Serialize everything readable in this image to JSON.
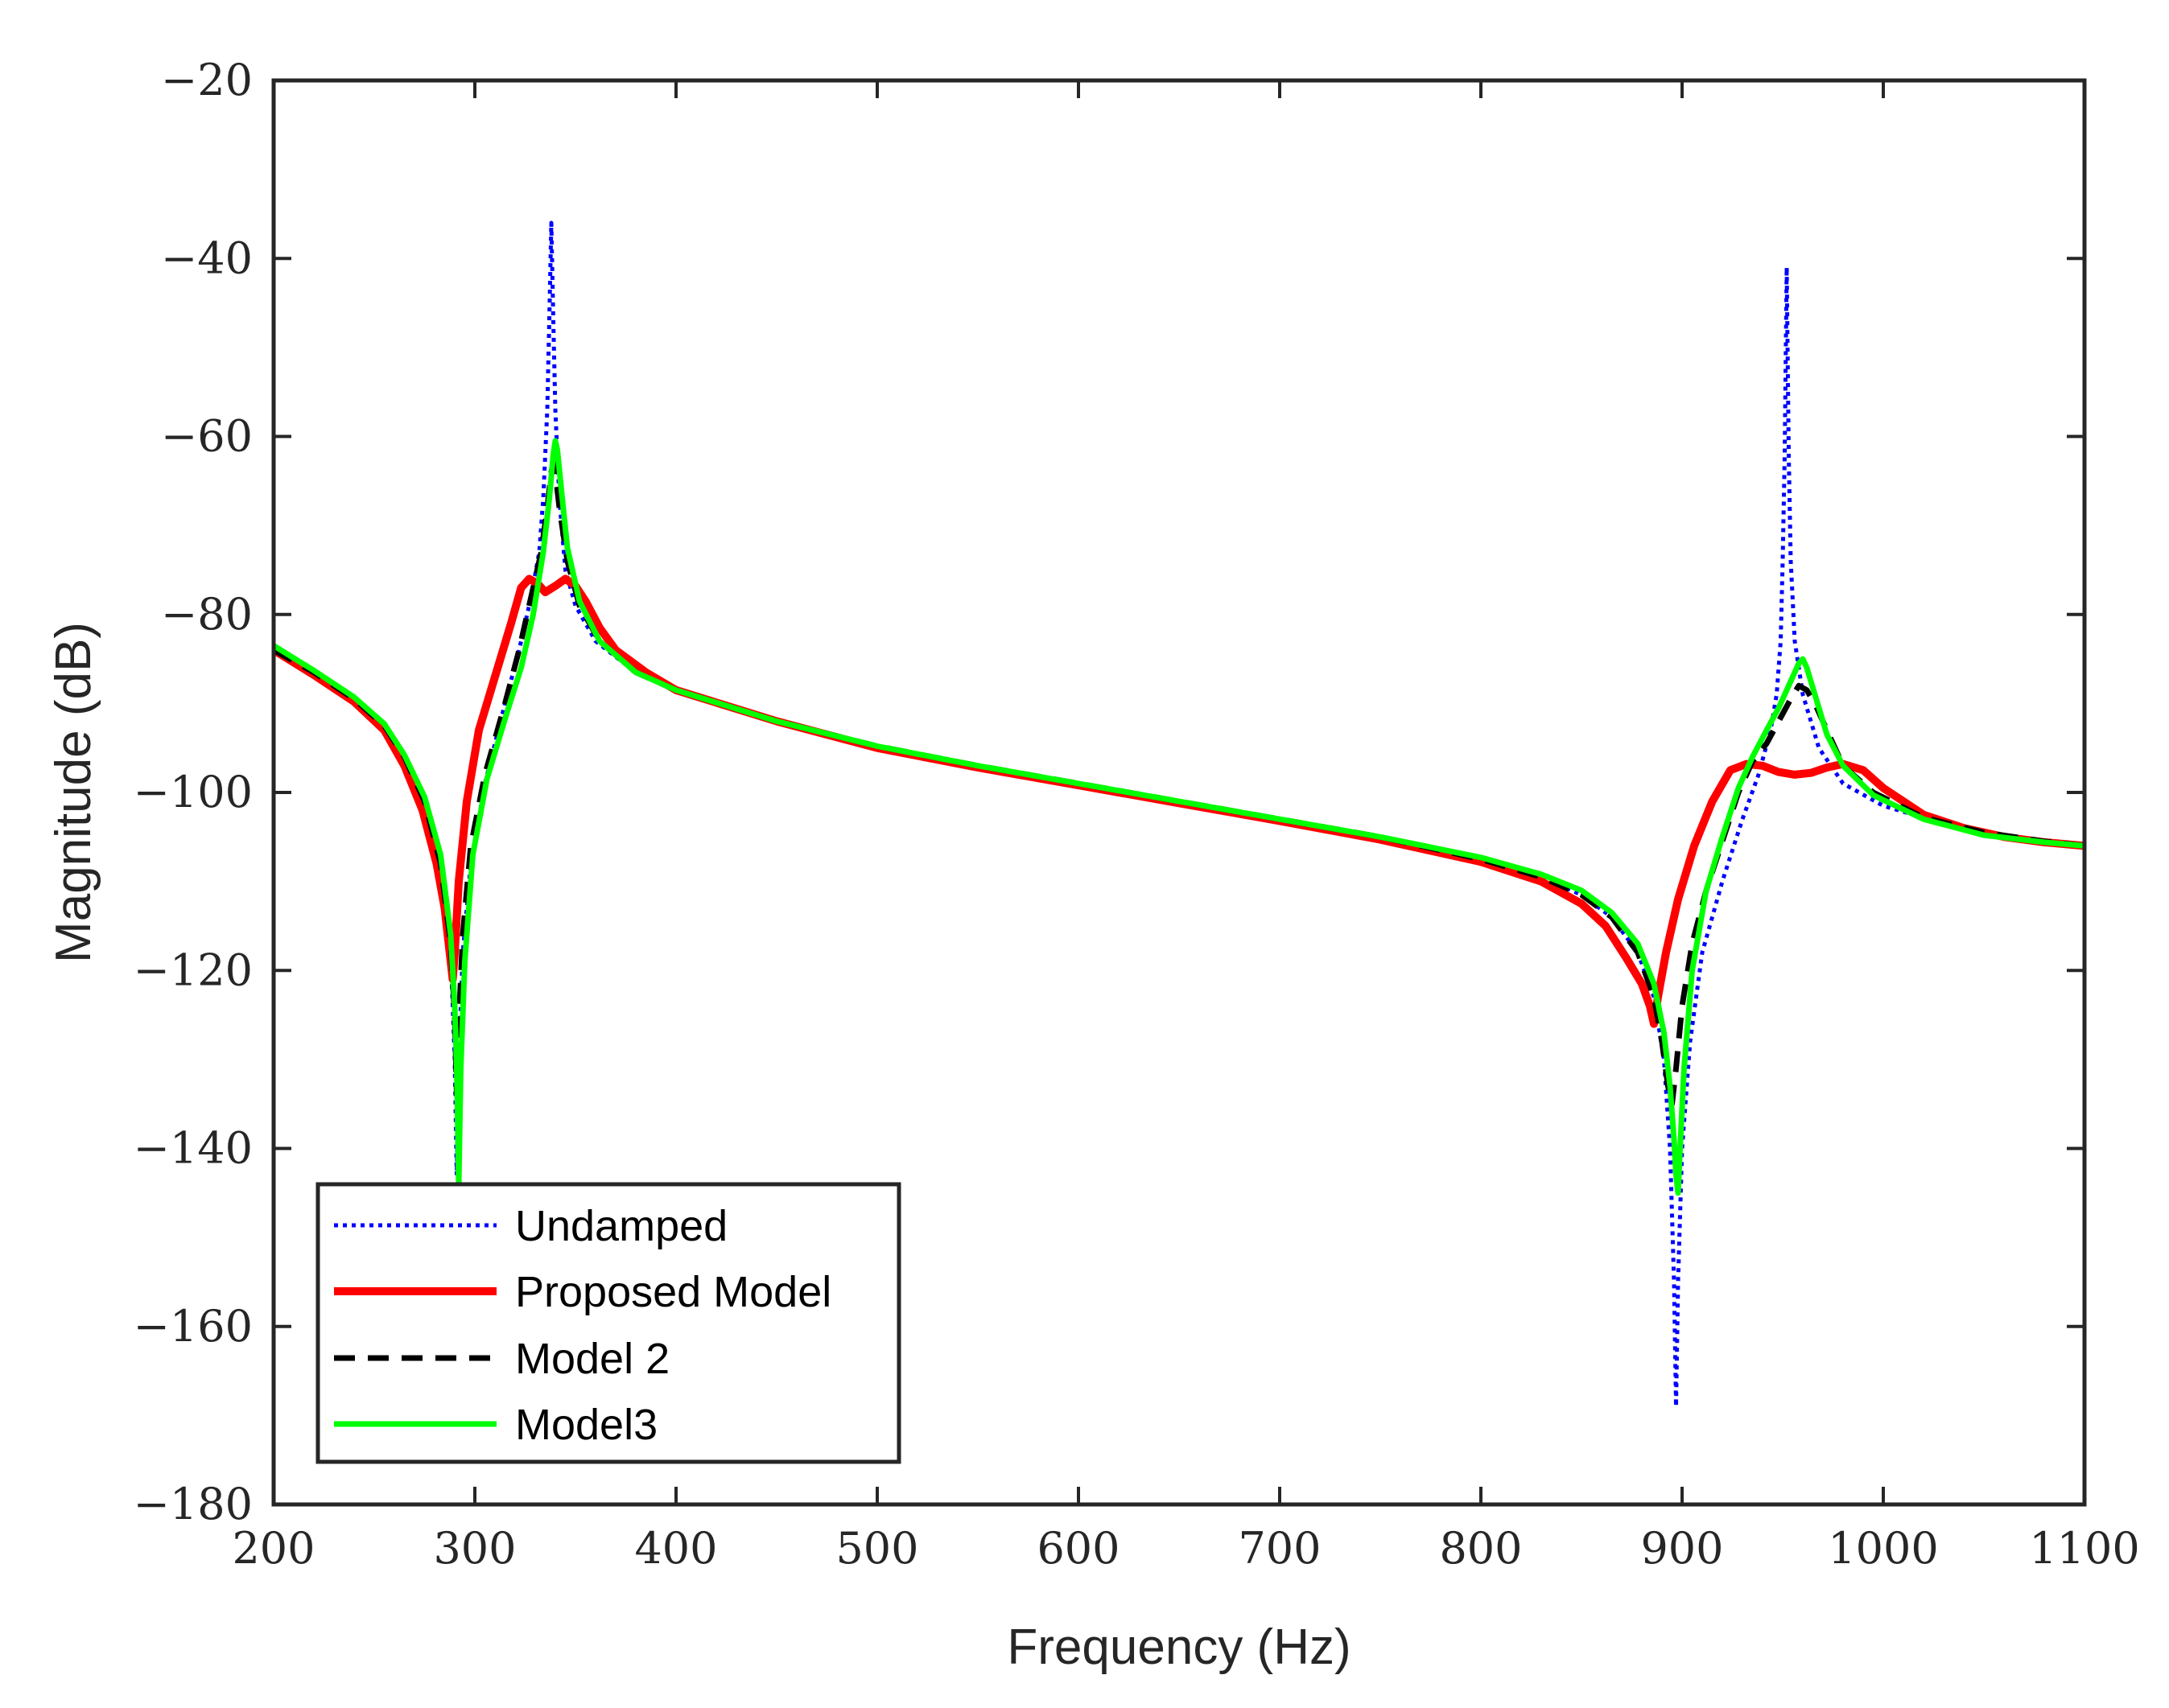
{
  "chart_data": {
    "type": "line",
    "title": "",
    "xlabel": "Frequency (Hz)",
    "ylabel": "Magnitude (dB)",
    "xlim": [
      200,
      1100
    ],
    "ylim": [
      -180,
      -20
    ],
    "xticks": [
      200,
      300,
      400,
      500,
      600,
      700,
      800,
      900,
      1000,
      1100
    ],
    "xtick_labels": [
      "200",
      "300",
      "400",
      "500",
      "600",
      "700",
      "800",
      "900",
      "1000",
      "1100"
    ],
    "yticks": [
      -180,
      -160,
      -140,
      -120,
      -100,
      -80,
      -60,
      -40,
      -20
    ],
    "ytick_labels": [
      "−180",
      "−160",
      "−140",
      "−120",
      "−100",
      "−80",
      "−60",
      "−40",
      "−20"
    ],
    "grid": false,
    "legend_position": "bottom-left",
    "series": [
      {
        "name": "Undamped",
        "color": "#0000ff",
        "style": "dotted",
        "points": [
          [
            200,
            -84
          ],
          [
            220,
            -86.5
          ],
          [
            240,
            -89.5
          ],
          [
            255,
            -92.5
          ],
          [
            265,
            -96
          ],
          [
            275,
            -101
          ],
          [
            283,
            -108
          ],
          [
            288,
            -118
          ],
          [
            290,
            -130
          ],
          [
            291,
            -143
          ],
          [
            292,
            -130
          ],
          [
            294,
            -118
          ],
          [
            298,
            -108
          ],
          [
            305,
            -99
          ],
          [
            315,
            -90
          ],
          [
            322,
            -84
          ],
          [
            328,
            -78
          ],
          [
            332,
            -73
          ],
          [
            334,
            -67
          ],
          [
            336,
            -57
          ],
          [
            337,
            -47
          ],
          [
            338,
            -36
          ],
          [
            339,
            -47
          ],
          [
            340,
            -57
          ],
          [
            342,
            -67
          ],
          [
            345,
            -75
          ],
          [
            350,
            -79
          ],
          [
            360,
            -83
          ],
          [
            380,
            -86.5
          ],
          [
            400,
            -88.5
          ],
          [
            450,
            -92
          ],
          [
            500,
            -94.8
          ],
          [
            550,
            -97
          ],
          [
            600,
            -99
          ],
          [
            650,
            -101
          ],
          [
            700,
            -103
          ],
          [
            750,
            -105
          ],
          [
            800,
            -107.5
          ],
          [
            830,
            -109.5
          ],
          [
            850,
            -111.5
          ],
          [
            865,
            -114
          ],
          [
            878,
            -118
          ],
          [
            886,
            -123
          ],
          [
            891,
            -130
          ],
          [
            894,
            -140
          ],
          [
            896,
            -155
          ],
          [
            897,
            -169
          ],
          [
            898,
            -155
          ],
          [
            900,
            -140
          ],
          [
            904,
            -128
          ],
          [
            910,
            -118
          ],
          [
            920,
            -110
          ],
          [
            930,
            -103
          ],
          [
            938,
            -98
          ],
          [
            944,
            -93
          ],
          [
            947,
            -89
          ],
          [
            949,
            -83
          ],
          [
            950,
            -74
          ],
          [
            951,
            -62
          ],
          [
            952,
            -41
          ],
          [
            953,
            -62
          ],
          [
            954,
            -74
          ],
          [
            956,
            -83
          ],
          [
            960,
            -89
          ],
          [
            968,
            -95
          ],
          [
            980,
            -99
          ],
          [
            1000,
            -101.5
          ],
          [
            1030,
            -103.5
          ],
          [
            1060,
            -105
          ],
          [
            1100,
            -106
          ]
        ]
      },
      {
        "name": "Proposed Model",
        "color": "#ff0000",
        "style": "solid",
        "points": [
          [
            200,
            -84
          ],
          [
            220,
            -86.8
          ],
          [
            240,
            -89.8
          ],
          [
            255,
            -93
          ],
          [
            265,
            -97
          ],
          [
            274,
            -102
          ],
          [
            281,
            -108
          ],
          [
            285,
            -113
          ],
          [
            288,
            -119
          ],
          [
            289,
            -121
          ],
          [
            290,
            -118
          ],
          [
            292,
            -110
          ],
          [
            296,
            -101
          ],
          [
            302,
            -93
          ],
          [
            310,
            -87
          ],
          [
            318,
            -81
          ],
          [
            323,
            -77
          ],
          [
            327,
            -76
          ],
          [
            331,
            -76.5
          ],
          [
            335,
            -77.5
          ],
          [
            340,
            -76.8
          ],
          [
            345,
            -76
          ],
          [
            350,
            -76.8
          ],
          [
            355,
            -78.5
          ],
          [
            362,
            -81.5
          ],
          [
            370,
            -84
          ],
          [
            385,
            -86.5
          ],
          [
            400,
            -88.5
          ],
          [
            450,
            -92
          ],
          [
            500,
            -95
          ],
          [
            550,
            -97.2
          ],
          [
            600,
            -99.2
          ],
          [
            650,
            -101.2
          ],
          [
            700,
            -103.2
          ],
          [
            750,
            -105.3
          ],
          [
            800,
            -107.8
          ],
          [
            830,
            -110
          ],
          [
            850,
            -112.5
          ],
          [
            862,
            -115
          ],
          [
            872,
            -118.5
          ],
          [
            880,
            -121.5
          ],
          [
            884,
            -124
          ],
          [
            886,
            -126
          ],
          [
            888,
            -123
          ],
          [
            892,
            -118
          ],
          [
            898,
            -112
          ],
          [
            906,
            -106
          ],
          [
            915,
            -101
          ],
          [
            924,
            -97.5
          ],
          [
            932,
            -96.8
          ],
          [
            940,
            -97
          ],
          [
            948,
            -97.7
          ],
          [
            956,
            -98
          ],
          [
            964,
            -97.8
          ],
          [
            972,
            -97.2
          ],
          [
            980,
            -96.8
          ],
          [
            990,
            -97.5
          ],
          [
            1000,
            -99.5
          ],
          [
            1020,
            -102.5
          ],
          [
            1040,
            -104
          ],
          [
            1060,
            -105
          ],
          [
            1080,
            -105.6
          ],
          [
            1100,
            -106
          ]
        ]
      },
      {
        "name": "Model 2",
        "color": "#000000",
        "style": "dashed",
        "points": [
          [
            200,
            -84
          ],
          [
            220,
            -86.5
          ],
          [
            240,
            -89.5
          ],
          [
            255,
            -92.5
          ],
          [
            265,
            -96
          ],
          [
            275,
            -101
          ],
          [
            283,
            -108
          ],
          [
            288,
            -117
          ],
          [
            290,
            -125
          ],
          [
            291,
            -134
          ],
          [
            292,
            -126
          ],
          [
            294,
            -116
          ],
          [
            298,
            -106
          ],
          [
            305,
            -98
          ],
          [
            315,
            -90
          ],
          [
            322,
            -84
          ],
          [
            328,
            -78
          ],
          [
            333,
            -73
          ],
          [
            336,
            -68
          ],
          [
            338,
            -64
          ],
          [
            339,
            -63
          ],
          [
            340,
            -64
          ],
          [
            342,
            -68
          ],
          [
            346,
            -74
          ],
          [
            352,
            -79
          ],
          [
            362,
            -83
          ],
          [
            380,
            -86.5
          ],
          [
            400,
            -88.5
          ],
          [
            450,
            -92
          ],
          [
            500,
            -94.8
          ],
          [
            550,
            -97
          ],
          [
            600,
            -99
          ],
          [
            650,
            -101
          ],
          [
            700,
            -103
          ],
          [
            750,
            -105
          ],
          [
            800,
            -107.5
          ],
          [
            830,
            -109.5
          ],
          [
            850,
            -111.5
          ],
          [
            865,
            -114
          ],
          [
            878,
            -118
          ],
          [
            886,
            -123
          ],
          [
            890,
            -128
          ],
          [
            893,
            -133
          ],
          [
            895,
            -135
          ],
          [
            897,
            -131
          ],
          [
            900,
            -124
          ],
          [
            905,
            -117
          ],
          [
            912,
            -111
          ],
          [
            920,
            -105.5
          ],
          [
            928,
            -100
          ],
          [
            935,
            -96.5
          ],
          [
            942,
            -94.5
          ],
          [
            948,
            -92
          ],
          [
            954,
            -89.5
          ],
          [
            958,
            -88
          ],
          [
            962,
            -88.5
          ],
          [
            967,
            -90.5
          ],
          [
            972,
            -93
          ],
          [
            980,
            -97
          ],
          [
            995,
            -100
          ],
          [
            1020,
            -102.8
          ],
          [
            1050,
            -104.5
          ],
          [
            1080,
            -105.5
          ],
          [
            1100,
            -106
          ]
        ]
      },
      {
        "name": "Model3",
        "color": "#00ff00",
        "style": "solid",
        "points": [
          [
            200,
            -83.5
          ],
          [
            220,
            -86.3
          ],
          [
            240,
            -89.3
          ],
          [
            255,
            -92.3
          ],
          [
            265,
            -95.8
          ],
          [
            275,
            -100.5
          ],
          [
            283,
            -107
          ],
          [
            288,
            -116
          ],
          [
            290,
            -124
          ],
          [
            291,
            -131
          ],
          [
            292,
            -144
          ],
          [
            293,
            -131
          ],
          [
            295,
            -119
          ],
          [
            299,
            -107
          ],
          [
            306,
            -98.5
          ],
          [
            316,
            -91
          ],
          [
            323,
            -86
          ],
          [
            329,
            -80
          ],
          [
            334,
            -73
          ],
          [
            337,
            -67
          ],
          [
            339,
            -62
          ],
          [
            340,
            -60.5
          ],
          [
            341,
            -61.5
          ],
          [
            343,
            -66
          ],
          [
            346,
            -72.5
          ],
          [
            352,
            -78.5
          ],
          [
            362,
            -83
          ],
          [
            380,
            -86.5
          ],
          [
            400,
            -88.5
          ],
          [
            450,
            -92
          ],
          [
            500,
            -94.8
          ],
          [
            550,
            -97
          ],
          [
            600,
            -99
          ],
          [
            650,
            -101
          ],
          [
            700,
            -103
          ],
          [
            750,
            -105
          ],
          [
            800,
            -107.3
          ],
          [
            830,
            -109.2
          ],
          [
            850,
            -111
          ],
          [
            865,
            -113.5
          ],
          [
            878,
            -117
          ],
          [
            886,
            -121.5
          ],
          [
            891,
            -127
          ],
          [
            894,
            -133
          ],
          [
            896,
            -139
          ],
          [
            897,
            -143
          ],
          [
            898,
            -145
          ],
          [
            899,
            -140
          ],
          [
            901,
            -131
          ],
          [
            905,
            -120
          ],
          [
            912,
            -111
          ],
          [
            920,
            -105
          ],
          [
            928,
            -99.5
          ],
          [
            935,
            -96
          ],
          [
            942,
            -93
          ],
          [
            948,
            -90.5
          ],
          [
            954,
            -87.5
          ],
          [
            958,
            -85.5
          ],
          [
            960,
            -85
          ],
          [
            962,
            -86
          ],
          [
            966,
            -89
          ],
          [
            972,
            -93.5
          ],
          [
            980,
            -97
          ],
          [
            995,
            -100.3
          ],
          [
            1020,
            -103
          ],
          [
            1050,
            -104.8
          ],
          [
            1080,
            -105.6
          ],
          [
            1100,
            -106
          ]
        ]
      }
    ]
  }
}
